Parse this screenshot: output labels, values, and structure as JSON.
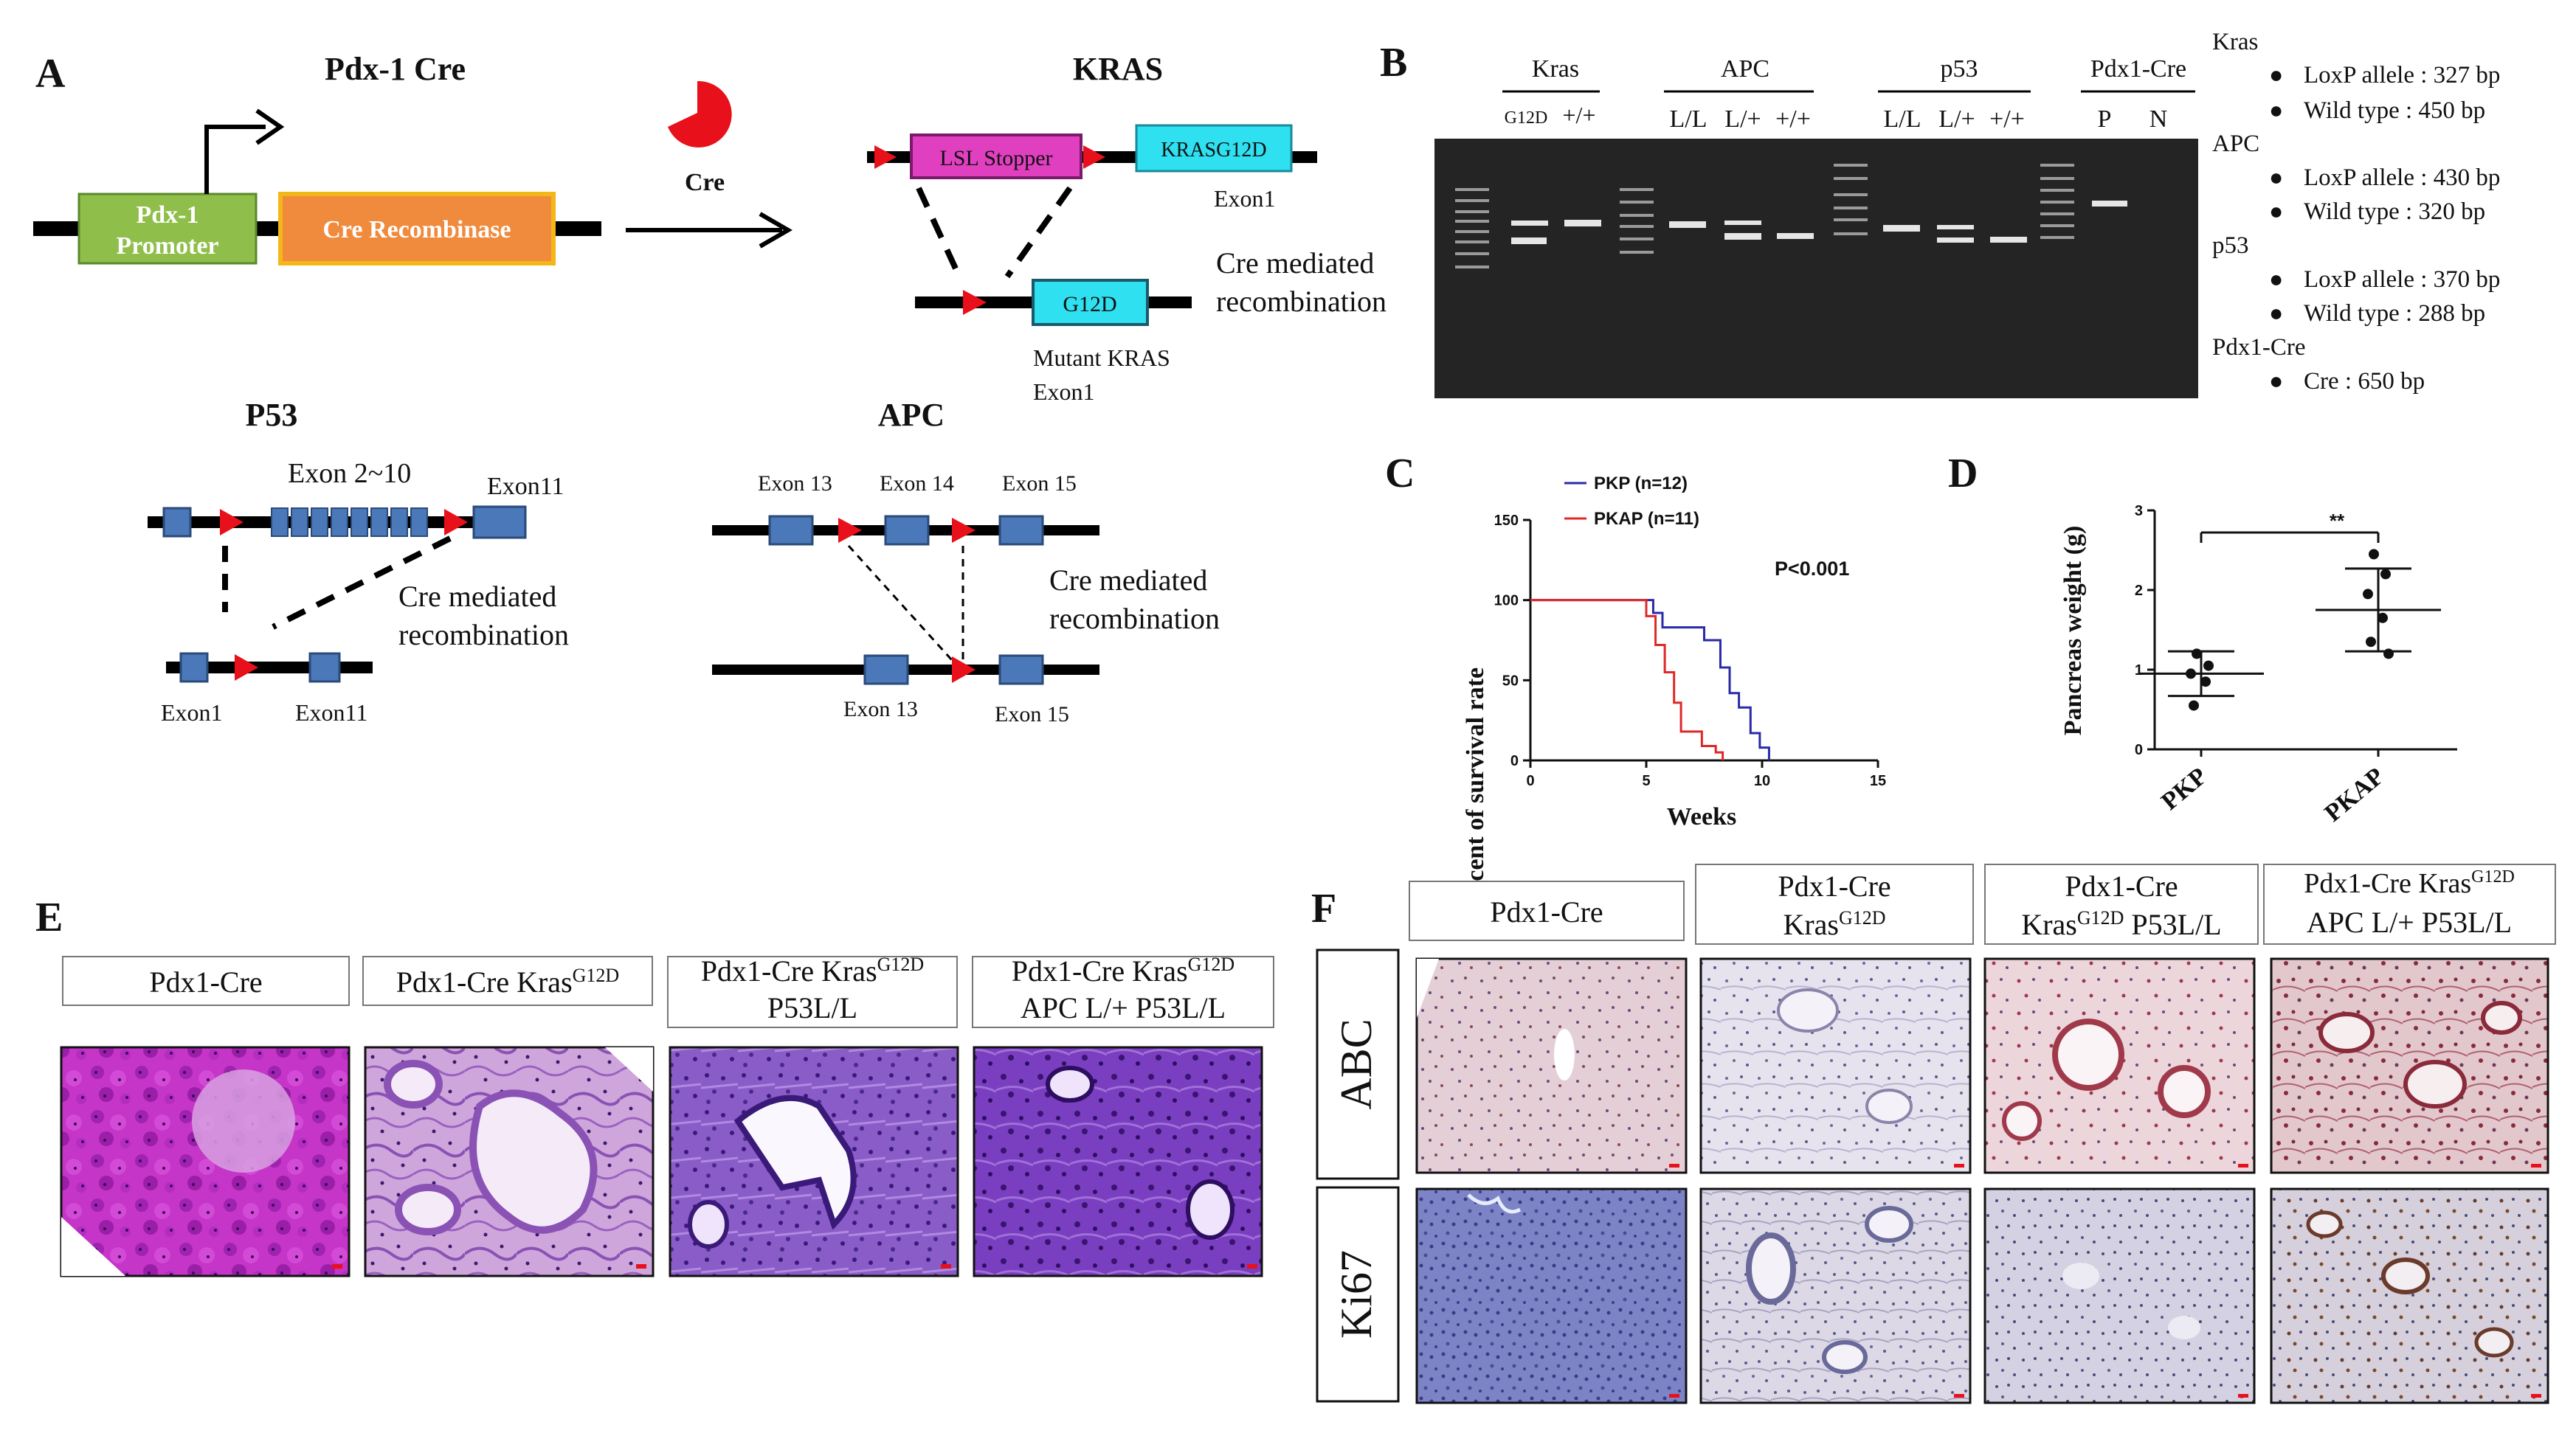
{
  "panelA": {
    "letter": "A",
    "pdx_title": "Pdx-1 Cre",
    "promoter_line1": "Pdx-1",
    "promoter_line2": "Promoter",
    "recombinase": "Cre Recombinase",
    "cre_label": "Cre",
    "kras_title": "KRAS",
    "lsl": "LSL Stopper",
    "krasg12d": "KRASG12D",
    "exon1": "Exon1",
    "g12d": "G12D",
    "cre_mediated": "Cre  mediated",
    "recombination": "recombination",
    "mutant_kras": "Mutant KRAS",
    "mutant_exon": "Exon1",
    "p53_title": "P53",
    "exon2_10": "Exon 2~10",
    "exon11": "Exon11",
    "p53_exon1": "Exon1",
    "p53_exon11": "Exon11",
    "apc_title": "APC",
    "exon13": "Exon 13",
    "exon14": "Exon 14",
    "exon15": "Exon 15",
    "apc_exon13": "Exon 13",
    "apc_exon15": "Exon 15",
    "colors": {
      "promoter": "#8fbf4a",
      "recombinase": "#f08a3c",
      "lsl": "#e040c0",
      "kras": "#2ee0f0",
      "exon": "#4a78b8",
      "lox": "#e8101a",
      "cre": "#e8101a"
    }
  },
  "panelB": {
    "letter": "B",
    "groups": [
      {
        "name": "Kras",
        "lanes": [
          "G12D",
          "+/+"
        ]
      },
      {
        "name": "APC",
        "lanes": [
          "L/L",
          "L/+",
          "+/+"
        ]
      },
      {
        "name": "p53",
        "lanes": [
          "L/L",
          "L/+",
          "+/+"
        ]
      },
      {
        "name": "Pdx1-Cre",
        "lanes": [
          "P",
          "N"
        ]
      }
    ],
    "legend": [
      {
        "gene": "Kras",
        "items": [
          "LoxP allele : 327 bp",
          "Wild type : 450 bp"
        ]
      },
      {
        "gene": "APC",
        "items": [
          "LoxP allele : 430 bp",
          "Wild type : 320 bp"
        ]
      },
      {
        "gene": "p53",
        "items": [
          "LoxP allele : 370 bp",
          "Wild type : 288 bp"
        ]
      },
      {
        "gene": "Pdx1-Cre",
        "items": [
          "Cre : 650 bp"
        ]
      }
    ]
  },
  "panelC": {
    "letter": "C",
    "pvalue": "P<0.001",
    "chart_data": {
      "type": "line",
      "xlabel": "Weeks",
      "ylabel": "Percent of survival rate",
      "xlim": [
        0,
        15
      ],
      "ylim": [
        0,
        150
      ],
      "xticks": [
        "0",
        "5",
        "10",
        "15"
      ],
      "yticks": [
        "0",
        "50",
        "100",
        "150"
      ],
      "series": [
        {
          "name": "PKP (n=12)",
          "color": "#2a2aa8",
          "x": [
            0,
            5.3,
            5.3,
            5.7,
            5.7,
            7.5,
            7.5,
            8.2,
            8.2,
            8.6,
            8.6,
            9.0,
            9.0,
            9.5,
            9.5,
            9.9,
            9.9,
            10.3,
            10.3
          ],
          "y": [
            100,
            100,
            92,
            92,
            83,
            83,
            75,
            75,
            58,
            58,
            42,
            42,
            33,
            33,
            17,
            17,
            8,
            8,
            0
          ]
        },
        {
          "name": "PKAP (n=11)",
          "color": "#e02828",
          "x": [
            0,
            5.0,
            5.0,
            5.4,
            5.4,
            5.8,
            5.8,
            6.2,
            6.2,
            6.5,
            6.5,
            7.4,
            7.4,
            8.0,
            8.0,
            8.3,
            8.3
          ],
          "y": [
            100,
            100,
            90,
            90,
            72,
            72,
            55,
            55,
            36,
            36,
            18,
            18,
            9,
            9,
            5,
            5,
            0
          ]
        }
      ]
    }
  },
  "panelD": {
    "letter": "D",
    "sig": "**",
    "chart_data": {
      "type": "scatter",
      "ylabel": "Pancreas weight (g)",
      "categories": [
        "PKP",
        "PKAP"
      ],
      "ylim": [
        0,
        3
      ],
      "yticks": [
        "0",
        "1",
        "2",
        "3"
      ],
      "points": [
        {
          "category": "PKP",
          "values": [
            1.2,
            1.05,
            0.95,
            0.85,
            0.55
          ]
        },
        {
          "category": "PKAP",
          "values": [
            2.45,
            2.2,
            1.95,
            1.65,
            1.35,
            1.2
          ]
        }
      ],
      "mean": [
        0.95,
        1.75
      ],
      "sd": [
        0.28,
        0.52
      ]
    }
  },
  "panelE": {
    "letter": "E",
    "headers": [
      {
        "l1": "Pdx1-Cre",
        "l2": ""
      },
      {
        "l1": "Pdx1-Cre Kras",
        "sup": "G12D",
        "l2": ""
      },
      {
        "l1": "Pdx1-Cre Kras",
        "sup": "G12D",
        "l2": "P53L/L"
      },
      {
        "l1": "Pdx1-Cre Kras",
        "sup": "G12D",
        "l2": "APC L/+ P53L/L"
      }
    ]
  },
  "panelF": {
    "letter": "F",
    "headers": [
      {
        "l1": "Pdx1-Cre",
        "l2a": "",
        "l2sup": "",
        "l2b": ""
      },
      {
        "l1": "Pdx1-Cre",
        "l2a": "Kras",
        "l2sup": "G12D",
        "l2b": ""
      },
      {
        "l1": "Pdx1-Cre",
        "l2a": "Kras",
        "l2sup": "G12D",
        "l2b": " P53L/L"
      },
      {
        "l1": "Pdx1-Cre Kras",
        "l1sup": "G12D",
        "l2a": "APC L/+ P53L/L",
        "l2sup": "",
        "l2b": ""
      }
    ],
    "rows": [
      "ABC",
      "Ki67"
    ]
  }
}
